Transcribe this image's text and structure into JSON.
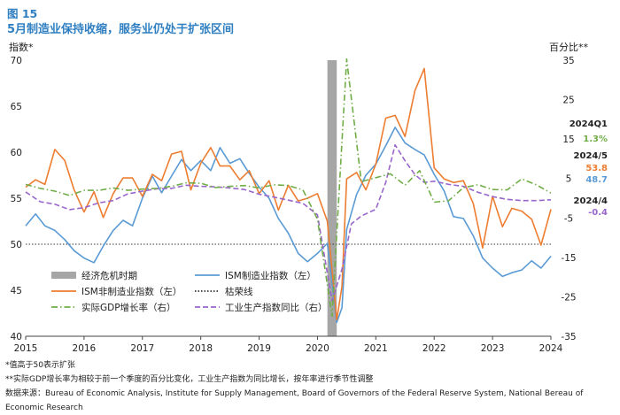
{
  "figure": {
    "label": "图 15",
    "title": "5月制造业保持收缩，服务业仍处于扩张区间"
  },
  "notes": [
    "*值高于50表示扩张",
    "**实际GDP增长率为相较于前一个季度的百分比变化，工业生产指数为同比增长，按年率进行季节性调整",
    "数据来源：Bureau of Economic Analysis, Institute for Supply Management, Board of Governors of the Federal Reserve System, National Bereau of Economic Research"
  ],
  "colors": {
    "ism_manufacturing": "#5b9bd5",
    "ism_services": "#ed7d31",
    "gdp": "#70ad47",
    "industrial_production": "#9966cc",
    "recession": "#a6a6a6",
    "boom_bust": "#333333",
    "label_2024q1": "#70ad47",
    "label_2024_5_services": "#ed7d31",
    "label_2024_5_manufacturing": "#5b9bd5",
    "label_2024_4": "#9966cc"
  },
  "chart_data": {
    "type": "line",
    "ylabel_left": "指数*",
    "ylabel_right": "百分比**",
    "ylim_left": [
      40,
      70
    ],
    "ylim_right": [
      -35,
      35
    ],
    "yticks_left": [
      40,
      45,
      50,
      55,
      60,
      65,
      70
    ],
    "yticks_right": [
      -35,
      -25,
      -15,
      -5,
      5,
      15,
      25,
      35
    ],
    "xlim": [
      2015.0,
      2024.0
    ],
    "xticks": [
      "2015",
      "2016",
      "2017",
      "2018",
      "2019",
      "2020",
      "2021",
      "2022",
      "2023",
      "2024"
    ],
    "grid": false,
    "reference_line": {
      "name": "枯荣线",
      "axis": "left",
      "value": 50
    },
    "recession": {
      "name": "经济危机时期",
      "start": 2020.17,
      "end": 2020.33
    },
    "series": [
      {
        "name": "ISM制造业指数（左）",
        "axis": "left",
        "style": "solid",
        "color_key": "ism_manufacturing",
        "points": [
          [
            2015.0,
            52.0
          ],
          [
            2015.17,
            53.3
          ],
          [
            2015.33,
            52.0
          ],
          [
            2015.5,
            51.5
          ],
          [
            2015.67,
            50.5
          ],
          [
            2015.83,
            49.3
          ],
          [
            2016.0,
            48.5
          ],
          [
            2016.17,
            48.0
          ],
          [
            2016.33,
            49.8
          ],
          [
            2016.5,
            51.5
          ],
          [
            2016.67,
            52.6
          ],
          [
            2016.83,
            52.0
          ],
          [
            2017.0,
            55.0
          ],
          [
            2017.17,
            57.4
          ],
          [
            2017.33,
            55.6
          ],
          [
            2017.5,
            57.4
          ],
          [
            2017.67,
            59.2
          ],
          [
            2017.83,
            58.0
          ],
          [
            2018.0,
            59.1
          ],
          [
            2018.17,
            58.0
          ],
          [
            2018.33,
            60.5
          ],
          [
            2018.5,
            58.8
          ],
          [
            2018.67,
            59.3
          ],
          [
            2018.83,
            57.7
          ],
          [
            2019.0,
            56.2
          ],
          [
            2019.17,
            55.0
          ],
          [
            2019.33,
            52.8
          ],
          [
            2019.5,
            51.2
          ],
          [
            2019.67,
            49.0
          ],
          [
            2019.83,
            48.1
          ],
          [
            2020.0,
            49.0
          ],
          [
            2020.17,
            50.1
          ],
          [
            2020.33,
            41.5
          ],
          [
            2020.42,
            43.1
          ],
          [
            2020.5,
            51.6
          ],
          [
            2020.67,
            55.4
          ],
          [
            2020.83,
            57.5
          ],
          [
            2021.0,
            58.7
          ],
          [
            2021.17,
            60.7
          ],
          [
            2021.33,
            62.7
          ],
          [
            2021.5,
            61.0
          ],
          [
            2021.67,
            60.3
          ],
          [
            2021.83,
            59.7
          ],
          [
            2022.0,
            57.6
          ],
          [
            2022.17,
            55.8
          ],
          [
            2022.33,
            53.0
          ],
          [
            2022.5,
            52.8
          ],
          [
            2022.67,
            50.9
          ],
          [
            2022.83,
            48.5
          ],
          [
            2023.0,
            47.4
          ],
          [
            2023.17,
            46.5
          ],
          [
            2023.33,
            46.9
          ],
          [
            2023.5,
            47.2
          ],
          [
            2023.67,
            48.2
          ],
          [
            2023.83,
            47.4
          ],
          [
            2024.0,
            48.7
          ]
        ]
      },
      {
        "name": "ISM非制造业指数（左）",
        "axis": "left",
        "style": "solid",
        "color_key": "ism_services",
        "points": [
          [
            2015.0,
            56.2
          ],
          [
            2015.17,
            57.0
          ],
          [
            2015.33,
            56.5
          ],
          [
            2015.5,
            60.3
          ],
          [
            2015.67,
            59.1
          ],
          [
            2015.83,
            55.9
          ],
          [
            2016.0,
            53.5
          ],
          [
            2016.17,
            55.7
          ],
          [
            2016.33,
            52.9
          ],
          [
            2016.5,
            55.5
          ],
          [
            2016.67,
            57.2
          ],
          [
            2016.83,
            57.2
          ],
          [
            2017.0,
            55.2
          ],
          [
            2017.17,
            57.6
          ],
          [
            2017.33,
            56.9
          ],
          [
            2017.5,
            59.8
          ],
          [
            2017.67,
            60.1
          ],
          [
            2017.83,
            55.9
          ],
          [
            2018.0,
            58.8
          ],
          [
            2018.17,
            60.5
          ],
          [
            2018.33,
            58.5
          ],
          [
            2018.5,
            58.5
          ],
          [
            2018.67,
            57.0
          ],
          [
            2018.83,
            58.0
          ],
          [
            2019.0,
            55.5
          ],
          [
            2019.17,
            56.9
          ],
          [
            2019.33,
            53.7
          ],
          [
            2019.5,
            56.4
          ],
          [
            2019.67,
            54.7
          ],
          [
            2019.83,
            55.0
          ],
          [
            2020.0,
            55.5
          ],
          [
            2020.17,
            52.5
          ],
          [
            2020.33,
            41.8
          ],
          [
            2020.42,
            45.4
          ],
          [
            2020.5,
            57.1
          ],
          [
            2020.67,
            57.8
          ],
          [
            2020.83,
            55.9
          ],
          [
            2021.0,
            58.7
          ],
          [
            2021.17,
            63.7
          ],
          [
            2021.33,
            64.0
          ],
          [
            2021.5,
            61.7
          ],
          [
            2021.67,
            66.7
          ],
          [
            2021.83,
            69.1
          ],
          [
            2022.0,
            58.3
          ],
          [
            2022.17,
            57.1
          ],
          [
            2022.33,
            56.7
          ],
          [
            2022.5,
            56.9
          ],
          [
            2022.67,
            54.4
          ],
          [
            2022.83,
            49.6
          ],
          [
            2023.0,
            55.2
          ],
          [
            2023.17,
            51.9
          ],
          [
            2023.33,
            53.9
          ],
          [
            2023.5,
            53.6
          ],
          [
            2023.67,
            52.7
          ],
          [
            2023.83,
            49.9
          ],
          [
            2024.0,
            53.8
          ]
        ]
      },
      {
        "name": "实际GDP增长率（右）",
        "axis": "right",
        "style": "dashdot",
        "color_key": "gdp",
        "points": [
          [
            2015.0,
            3.5
          ],
          [
            2015.25,
            2.5
          ],
          [
            2015.5,
            1.8
          ],
          [
            2015.75,
            0.7
          ],
          [
            2016.0,
            2.0
          ],
          [
            2016.25,
            2.0
          ],
          [
            2016.5,
            2.6
          ],
          [
            2016.75,
            2.0
          ],
          [
            2017.0,
            2.3
          ],
          [
            2017.25,
            2.5
          ],
          [
            2017.5,
            3.0
          ],
          [
            2017.75,
            3.9
          ],
          [
            2018.0,
            3.8
          ],
          [
            2018.25,
            2.7
          ],
          [
            2018.5,
            3.0
          ],
          [
            2018.75,
            3.2
          ],
          [
            2019.0,
            2.6
          ],
          [
            2019.25,
            3.4
          ],
          [
            2019.5,
            3.2
          ],
          [
            2019.75,
            2.1
          ],
          [
            2020.0,
            -5.3
          ],
          [
            2020.25,
            -29.9
          ],
          [
            2020.5,
            35.3
          ],
          [
            2020.75,
            4.2
          ],
          [
            2021.0,
            5.2
          ],
          [
            2021.25,
            6.2
          ],
          [
            2021.5,
            3.3
          ],
          [
            2021.75,
            7.0
          ],
          [
            2022.0,
            -1.0
          ],
          [
            2022.25,
            -0.6
          ],
          [
            2022.5,
            2.7
          ],
          [
            2022.75,
            3.4
          ],
          [
            2023.0,
            2.2
          ],
          [
            2023.25,
            2.1
          ],
          [
            2023.5,
            4.9
          ],
          [
            2023.75,
            3.4
          ],
          [
            2024.0,
            1.3
          ]
        ]
      },
      {
        "name": "工业生产指数同比（右）",
        "axis": "right",
        "style": "dashed",
        "color_key": "industrial_production",
        "points": [
          [
            2015.0,
            1.6
          ],
          [
            2015.25,
            -0.9
          ],
          [
            2015.5,
            -1.5
          ],
          [
            2015.75,
            -2.9
          ],
          [
            2016.0,
            -2.4
          ],
          [
            2016.25,
            -1.2
          ],
          [
            2016.5,
            -0.6
          ],
          [
            2016.75,
            1.1
          ],
          [
            2017.0,
            1.8
          ],
          [
            2017.25,
            2.4
          ],
          [
            2017.5,
            2.5
          ],
          [
            2017.75,
            3.3
          ],
          [
            2018.0,
            3.0
          ],
          [
            2018.25,
            2.9
          ],
          [
            2018.5,
            2.6
          ],
          [
            2018.75,
            2.2
          ],
          [
            2019.0,
            1.0
          ],
          [
            2019.25,
            0.3
          ],
          [
            2019.5,
            -0.5
          ],
          [
            2019.75,
            -1.3
          ],
          [
            2020.0,
            -4.2
          ],
          [
            2020.25,
            -26.0
          ],
          [
            2020.42,
            -18.0
          ],
          [
            2020.58,
            -6.5
          ],
          [
            2020.75,
            -4.5
          ],
          [
            2021.0,
            -2.8
          ],
          [
            2021.17,
            4.0
          ],
          [
            2021.33,
            13.5
          ],
          [
            2021.5,
            9.5
          ],
          [
            2021.67,
            6.0
          ],
          [
            2021.83,
            4.0
          ],
          [
            2022.0,
            4.3
          ],
          [
            2022.25,
            3.5
          ],
          [
            2022.5,
            3.0
          ],
          [
            2022.75,
            1.5
          ],
          [
            2023.0,
            0.4
          ],
          [
            2023.25,
            -0.3
          ],
          [
            2023.5,
            -0.6
          ],
          [
            2023.75,
            -0.6
          ],
          [
            2024.0,
            -0.4
          ]
        ]
      }
    ],
    "legend": {
      "placement": "bottom-center",
      "entries": [
        {
          "label": "经济危机时期",
          "kind": "band",
          "color_key": "recession"
        },
        {
          "label": "ISM制造业指数（左）",
          "kind": "solid",
          "color_key": "ism_manufacturing"
        },
        {
          "label": "ISM非制造业指数（左）",
          "kind": "solid",
          "color_key": "ism_services"
        },
        {
          "label": "枯荣线",
          "kind": "dotted",
          "color_key": "boom_bust"
        },
        {
          "label": "实际GDP增长率（右）",
          "kind": "dashdot",
          "color_key": "gdp"
        },
        {
          "label": "工业生产指数同比（右）",
          "kind": "dashed",
          "color_key": "industrial_production"
        }
      ]
    },
    "annotations": [
      {
        "period": "2024Q1",
        "values": [
          {
            "text": "1.3%",
            "color_key": "label_2024q1"
          }
        ]
      },
      {
        "period": "2024/5",
        "values": [
          {
            "text": "53.8",
            "color_key": "label_2024_5_services"
          },
          {
            "text": "48.7",
            "color_key": "label_2024_5_manufacturing"
          }
        ]
      },
      {
        "period": "2024/4",
        "values": [
          {
            "text": "-0.4",
            "color_key": "label_2024_4"
          }
        ]
      }
    ]
  }
}
